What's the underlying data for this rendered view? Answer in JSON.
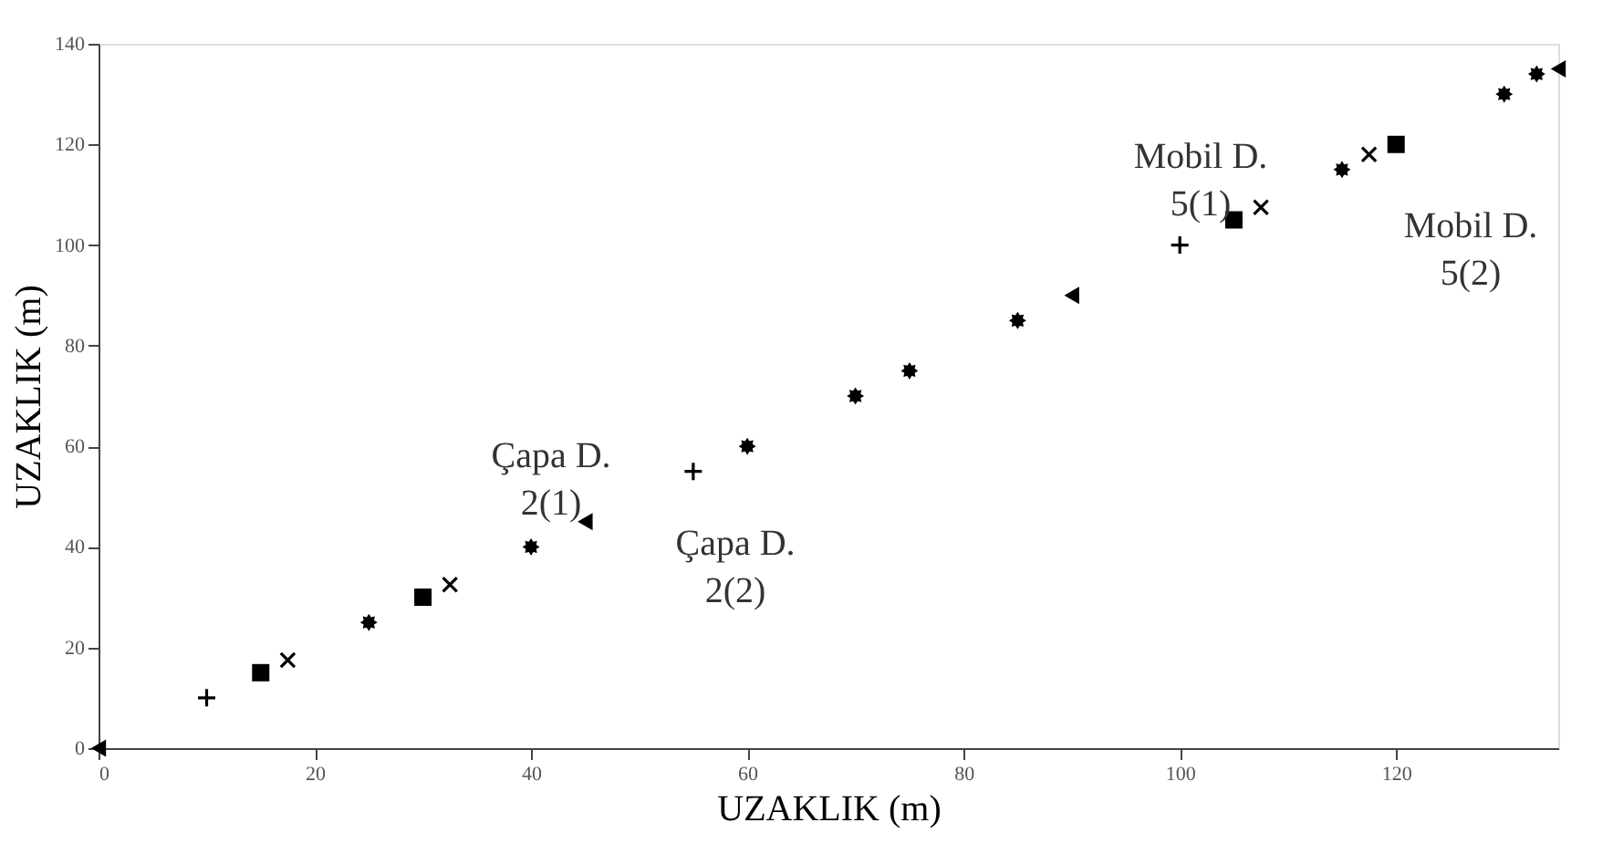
{
  "chart_data": {
    "type": "scatter",
    "xlabel": "UZAKLIK (m)",
    "ylabel": "UZAKLIK (m)",
    "xlim": [
      0,
      135
    ],
    "ylim": [
      0,
      140
    ],
    "xticks": [
      0,
      20,
      40,
      60,
      80,
      100,
      120
    ],
    "yticks": [
      0,
      20,
      40,
      60,
      80,
      100,
      120,
      140
    ],
    "grid": false,
    "series": [
      {
        "marker": "plus",
        "color": "#000000",
        "x": [
          10,
          55,
          100
        ],
        "values": [
          10,
          55,
          100
        ]
      },
      {
        "marker": "square",
        "color": "#000000",
        "x": [
          15,
          30,
          105,
          120
        ],
        "values": [
          15,
          30,
          105,
          120
        ]
      },
      {
        "marker": "x",
        "color": "#000000",
        "x": [
          17.5,
          32.5,
          107.5,
          117.5
        ],
        "values": [
          17.5,
          32.5,
          107.5,
          118
        ]
      },
      {
        "marker": "triangle",
        "color": "#000000",
        "x": [
          0,
          45,
          90,
          135
        ],
        "values": [
          0,
          45,
          90,
          135
        ]
      },
      {
        "marker": "star",
        "color": "#000000",
        "x": [
          25,
          40,
          60,
          70,
          75,
          85,
          115,
          130,
          133
        ],
        "values": [
          25,
          40,
          60,
          70,
          75,
          85,
          115,
          130,
          134
        ]
      }
    ],
    "annotations": [
      "Çapa D.\n2(1)",
      "Çapa D.\n2(2)",
      "Mobil D.\n5(1)",
      "Mobil D.\n5(2)"
    ]
  }
}
